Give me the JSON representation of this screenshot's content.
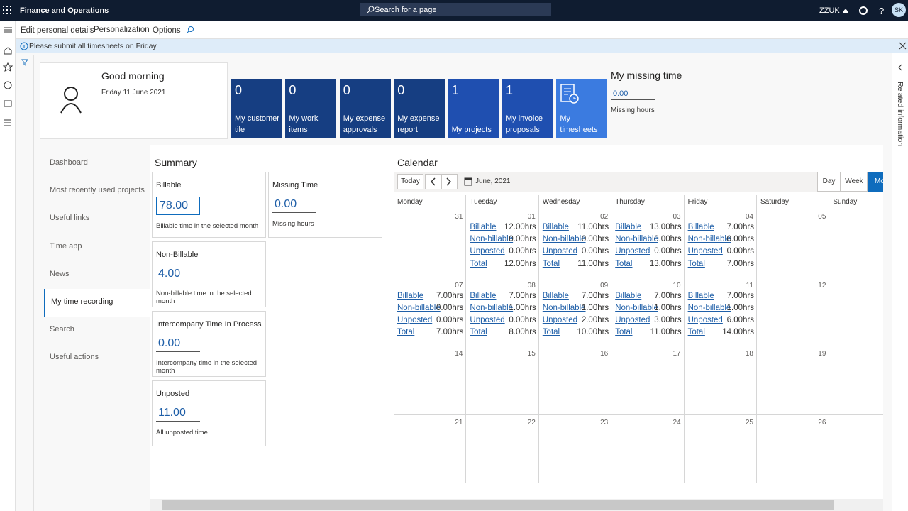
{
  "header": {
    "app_title": "Finance and Operations",
    "search_placeholder": "Search for a page",
    "company": "ZZUK",
    "initials": "SK"
  },
  "toolbar": {
    "items": [
      "Edit personal details",
      "Personalization",
      "Options"
    ]
  },
  "message": "Please submit all timesheets on Friday",
  "greeting": {
    "title": "Good morning",
    "date": "Friday 11 June 2021"
  },
  "tiles": [
    {
      "count": 0,
      "label": "My customer tile"
    },
    {
      "count": 0,
      "label": "My work items"
    },
    {
      "count": 0,
      "label": "My expense approvals"
    },
    {
      "count": 0,
      "label": "My expense report"
    },
    {
      "count": 1,
      "label": "My projects"
    },
    {
      "count": 1,
      "label": "My invoice proposals"
    },
    {
      "label": "My timesheets"
    }
  ],
  "missing_time": {
    "title": "My missing time",
    "value": "0.00",
    "label": "Missing hours"
  },
  "nav": [
    "Dashboard",
    "Most recently used projects",
    "Useful links",
    "Time app",
    "News",
    "My time recording",
    "Search",
    "Useful actions"
  ],
  "summary": {
    "title": "Summary",
    "cards": [
      {
        "title": "Billable",
        "value": "78.00",
        "note": "Billable time in the selected month"
      },
      {
        "title": "Non-Billable",
        "value": "4.00",
        "note": "Non-billable time in the selected month"
      },
      {
        "title": "Intercompany Time In Process",
        "value": "0.00",
        "note": "Intercompany time in the selected month"
      },
      {
        "title": "Unposted",
        "value": "11.00",
        "note": "All unposted time"
      }
    ],
    "missing": {
      "title": "Missing Time",
      "value": "0.00",
      "note": "Missing hours"
    }
  },
  "calendar": {
    "title": "Calendar",
    "today": "Today",
    "month": "June, 2021",
    "views": [
      "Day",
      "Week",
      "Mo"
    ],
    "weekdays": [
      "Monday",
      "Tuesday",
      "Wednesday",
      "Thursday",
      "Friday",
      "Saturday",
      "Sunday"
    ],
    "weeks": [
      [
        {
          "day": "31"
        },
        {
          "day": "01",
          "entries": [
            [
              "Billable",
              "12.00hrs"
            ],
            [
              "Non-billable",
              "0.00hrs"
            ],
            [
              "Unposted",
              "0.00hrs"
            ],
            [
              "Total",
              "12.00hrs"
            ]
          ]
        },
        {
          "day": "02",
          "entries": [
            [
              "Billable",
              "11.00hrs"
            ],
            [
              "Non-billable",
              "0.00hrs"
            ],
            [
              "Unposted",
              "0.00hrs"
            ],
            [
              "Total",
              "11.00hrs"
            ]
          ]
        },
        {
          "day": "03",
          "entries": [
            [
              "Billable",
              "13.00hrs"
            ],
            [
              "Non-billable",
              "0.00hrs"
            ],
            [
              "Unposted",
              "0.00hrs"
            ],
            [
              "Total",
              "13.00hrs"
            ]
          ]
        },
        {
          "day": "04",
          "entries": [
            [
              "Billable",
              "7.00hrs"
            ],
            [
              "Non-billable",
              "0.00hrs"
            ],
            [
              "Unposted",
              "0.00hrs"
            ],
            [
              "Total",
              "7.00hrs"
            ]
          ]
        },
        {
          "day": "05"
        }
      ],
      [
        {
          "day": "07",
          "entries": [
            [
              "Billable",
              "7.00hrs"
            ],
            [
              "Non-billable",
              "0.00hrs"
            ],
            [
              "Unposted",
              "0.00hrs"
            ],
            [
              "Total",
              "7.00hrs"
            ]
          ]
        },
        {
          "day": "08",
          "entries": [
            [
              "Billable",
              "7.00hrs"
            ],
            [
              "Non-billable",
              "1.00hrs"
            ],
            [
              "Unposted",
              "0.00hrs"
            ],
            [
              "Total",
              "8.00hrs"
            ]
          ]
        },
        {
          "day": "09",
          "entries": [
            [
              "Billable",
              "7.00hrs"
            ],
            [
              "Non-billable",
              "1.00hrs"
            ],
            [
              "Unposted",
              "2.00hrs"
            ],
            [
              "Total",
              "10.00hrs"
            ]
          ]
        },
        {
          "day": "10",
          "entries": [
            [
              "Billable",
              "7.00hrs"
            ],
            [
              "Non-billable",
              "1.00hrs"
            ],
            [
              "Unposted",
              "3.00hrs"
            ],
            [
              "Total",
              "11.00hrs"
            ]
          ]
        },
        {
          "day": "11",
          "entries": [
            [
              "Billable",
              "7.00hrs"
            ],
            [
              "Non-billable",
              "1.00hrs"
            ],
            [
              "Unposted",
              "6.00hrs"
            ],
            [
              "Total",
              "14.00hrs"
            ]
          ]
        },
        {
          "day": "12"
        }
      ],
      [
        {
          "day": "14"
        },
        {
          "day": "15"
        },
        {
          "day": "16"
        },
        {
          "day": "17"
        },
        {
          "day": "18"
        },
        {
          "day": "19"
        }
      ],
      [
        {
          "day": "21"
        },
        {
          "day": "22"
        },
        {
          "day": "23"
        },
        {
          "day": "24"
        },
        {
          "day": "25"
        },
        {
          "day": "26"
        }
      ]
    ]
  },
  "side_panel": "Related information"
}
